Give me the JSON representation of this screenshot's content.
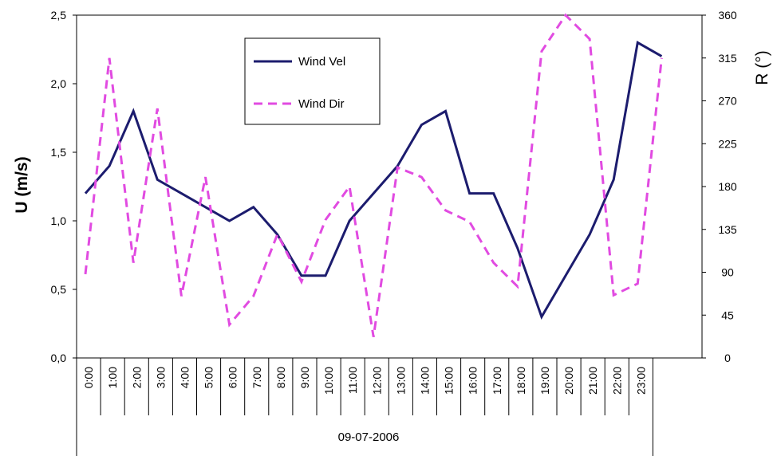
{
  "chart_data": {
    "type": "line",
    "title": "",
    "ylabel": "U  (m/s)",
    "y2label": "R  (°)",
    "xlabel": "09-07-2006",
    "categories": [
      "0:00",
      "1:00",
      "2:00",
      "3:00",
      "4:00",
      "5:00",
      "6:00",
      "7:00",
      "8:00",
      "9:00",
      "10:00",
      "11:00",
      "12:00",
      "13:00",
      "14:00",
      "15:00",
      "16:00",
      "17:00",
      "18:00",
      "19:00",
      "20:00",
      "21:00",
      "22:00",
      "23:00"
    ],
    "ylim": [
      0,
      2.5
    ],
    "y2lim": [
      0,
      360
    ],
    "yticks": [
      "0,0",
      "0,5",
      "1,0",
      "1,5",
      "2,0",
      "2,5"
    ],
    "y2ticks": [
      "0",
      "45",
      "90",
      "135",
      "180",
      "225",
      "270",
      "315",
      "360"
    ],
    "grid": false,
    "legend_position": "top-center",
    "series": [
      {
        "name": "Wind Vel",
        "axis": "left",
        "style": "solid",
        "color": "#1c1c6e",
        "x": [
          0,
          1,
          2,
          3,
          4,
          5,
          6,
          7,
          8,
          9,
          10,
          11,
          12,
          13,
          14,
          15,
          16,
          17,
          18,
          19,
          20,
          21,
          22,
          23,
          24
        ],
        "values": [
          1.2,
          1.4,
          1.8,
          1.3,
          1.2,
          1.1,
          1.0,
          1.1,
          0.9,
          0.6,
          0.6,
          1.0,
          1.2,
          1.4,
          1.7,
          1.8,
          1.2,
          1.2,
          0.8,
          0.3,
          0.6,
          0.9,
          1.3,
          2.3,
          2.2
        ]
      },
      {
        "name": "Wind Dir",
        "axis": "right",
        "style": "dashed",
        "color": "#e14be1",
        "x": [
          0,
          1,
          2,
          3,
          4,
          5,
          6,
          7,
          8,
          9,
          10,
          11,
          12,
          13,
          14,
          15,
          16,
          17,
          18,
          19,
          20,
          21,
          22,
          23,
          24
        ],
        "values": [
          88,
          315,
          100,
          262,
          65,
          190,
          35,
          65,
          130,
          80,
          145,
          180,
          22,
          200,
          190,
          155,
          143,
          100,
          75,
          322,
          360,
          335,
          66,
          78,
          315
        ]
      }
    ]
  }
}
